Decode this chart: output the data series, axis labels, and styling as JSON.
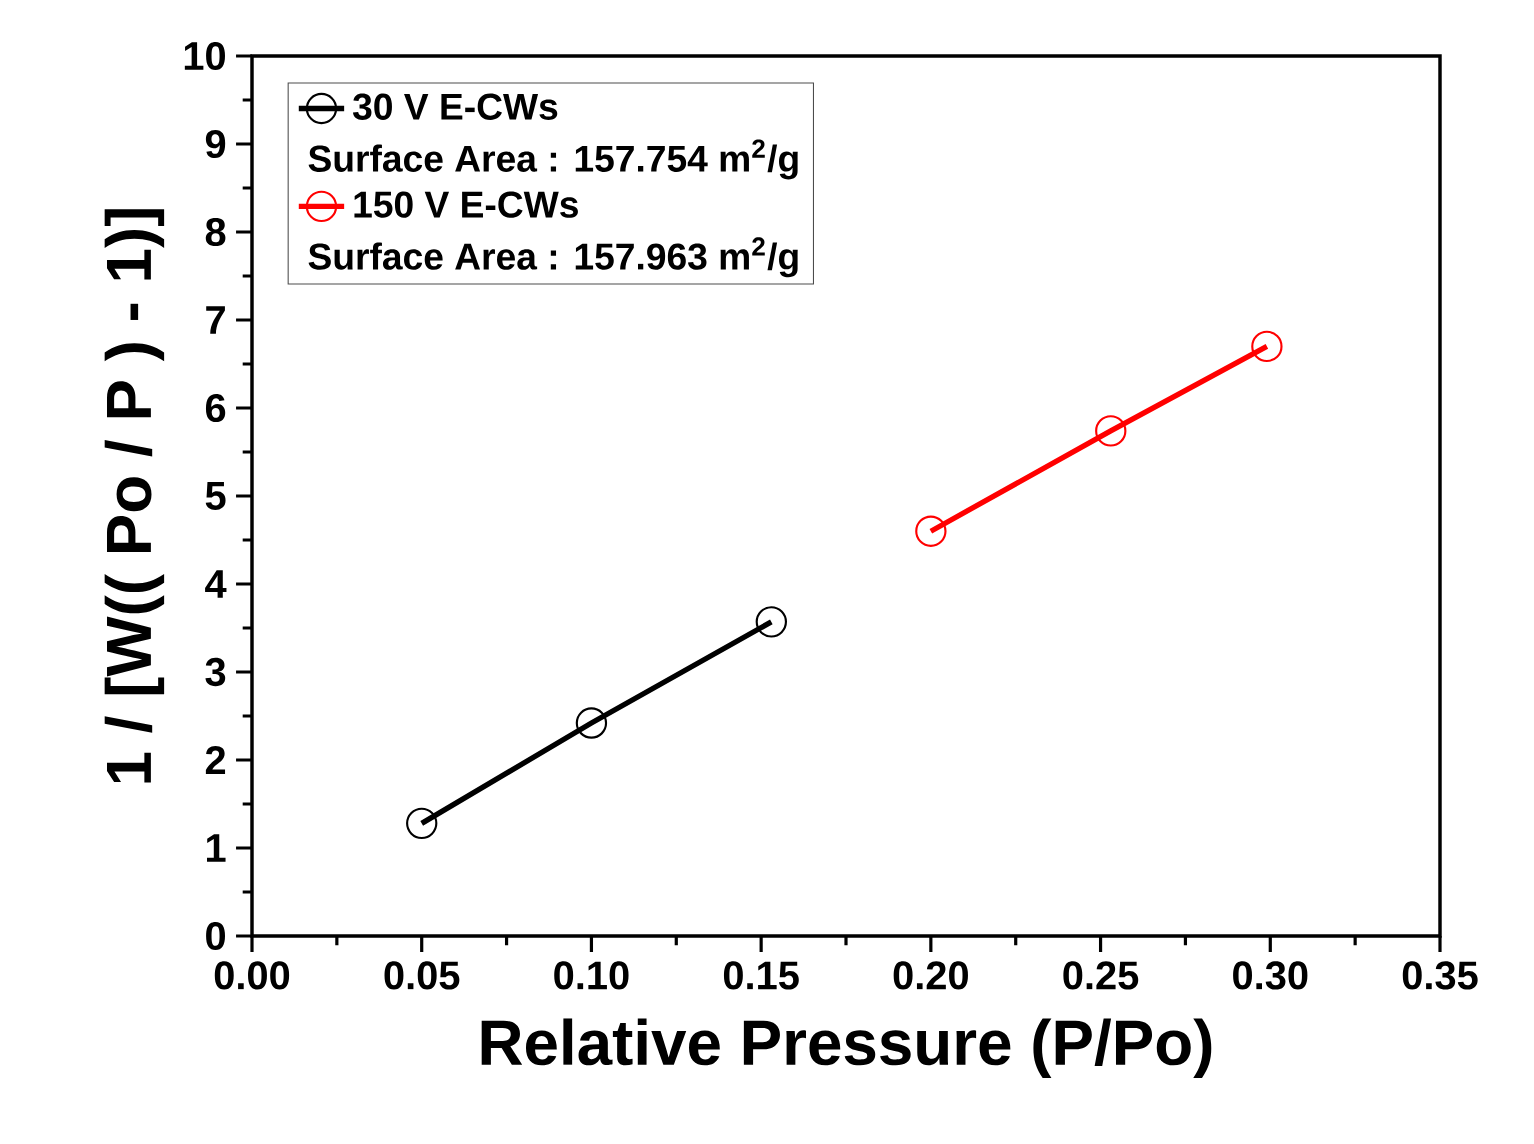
{
  "chart_data": {
    "type": "line",
    "xlabel": "Relative Pressure (P/Po)",
    "ylabel": "1 / [W(( Po / P ) - 1)]",
    "series": [
      {
        "name": "30 V E-CWs",
        "color": "#000000",
        "x": [
          0.05,
          0.1,
          0.153
        ],
        "values": [
          1.28,
          2.42,
          3.57
        ]
      },
      {
        "name": "150 V E-CWs",
        "color": "#ff0000",
        "x": [
          0.2,
          0.253,
          0.299
        ],
        "values": [
          4.6,
          5.74,
          6.7
        ]
      }
    ],
    "annotations": [
      "Surface Area : 157.754 m$^{2}$/g",
      "Surface Area : 157.963 m$^{2}$/g"
    ],
    "xlim": [
      0,
      0.35
    ],
    "ylim": [
      0,
      10
    ],
    "xticks": [
      {
        "value": 0,
        "label": "0.00"
      },
      {
        "value": 0.05,
        "label": "0.05"
      },
      {
        "value": 0.1,
        "label": "0.10"
      },
      {
        "value": 0.15,
        "label": "0.15"
      },
      {
        "value": 0.2,
        "label": "0.20"
      },
      {
        "value": 0.25,
        "label": "0.25"
      },
      {
        "value": 0.3,
        "label": "0.30"
      },
      {
        "value": 0.35,
        "label": "0.35"
      }
    ],
    "yticks": [
      0,
      1,
      2,
      3,
      4,
      5,
      6,
      7,
      8,
      9,
      10
    ],
    "marker": "circle",
    "line_style": "solid",
    "legend": "top left",
    "grid": false
  }
}
